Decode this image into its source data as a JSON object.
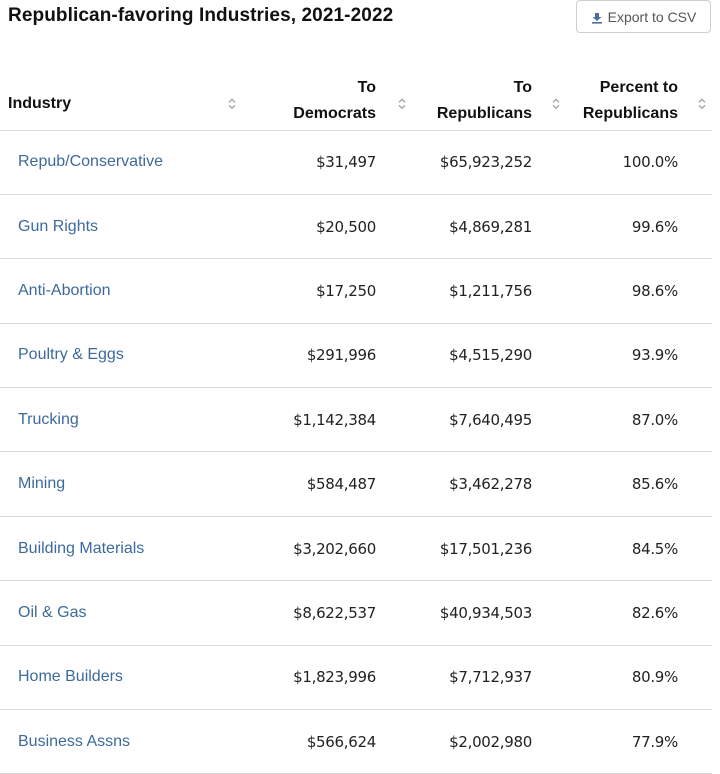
{
  "page": {
    "title": "Republican-favoring Industries, 2021-2022",
    "export_label": "Export to CSV"
  },
  "table": {
    "headers": {
      "industry": "Industry",
      "dem_line1": "To",
      "dem_line2": "Democrats",
      "rep_line1": "To",
      "rep_line2": "Republicans",
      "pct_line1": "Percent to",
      "pct_line2": "Republicans"
    },
    "rows": [
      {
        "industry": "Repub/Conservative",
        "dem": "$31,497",
        "rep": "$65,923,252",
        "pct": "100.0%"
      },
      {
        "industry": "Gun Rights",
        "dem": "$20,500",
        "rep": "$4,869,281",
        "pct": "99.6%"
      },
      {
        "industry": "Anti-Abortion",
        "dem": "$17,250",
        "rep": "$1,211,756",
        "pct": "98.6%"
      },
      {
        "industry": "Poultry & Eggs",
        "dem": "$291,996",
        "rep": "$4,515,290",
        "pct": "93.9%"
      },
      {
        "industry": "Trucking",
        "dem": "$1,142,384",
        "rep": "$7,640,495",
        "pct": "87.0%"
      },
      {
        "industry": "Mining",
        "dem": "$584,487",
        "rep": "$3,462,278",
        "pct": "85.6%"
      },
      {
        "industry": "Building Materials",
        "dem": "$3,202,660",
        "rep": "$17,501,236",
        "pct": "84.5%"
      },
      {
        "industry": "Oil & Gas",
        "dem": "$8,622,537",
        "rep": "$40,934,503",
        "pct": "82.6%"
      },
      {
        "industry": "Home Builders",
        "dem": "$1,823,996",
        "rep": "$7,712,937",
        "pct": "80.9%"
      },
      {
        "industry": "Business Assns",
        "dem": "$566,624",
        "rep": "$2,002,980",
        "pct": "77.9%"
      }
    ]
  },
  "icons": {
    "export": "download-icon",
    "sort": "sort-icon"
  },
  "colors": {
    "link": "#3d6a9c",
    "border": "#d8d8d8",
    "sort_icon": "#9a9a9a"
  }
}
